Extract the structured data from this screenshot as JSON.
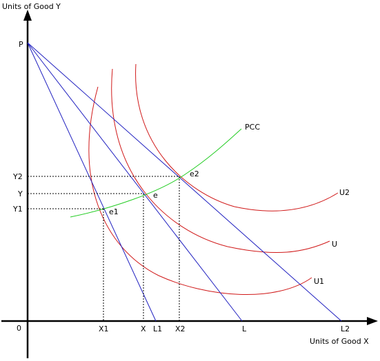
{
  "axes": {
    "y_title": "Units of Good Y",
    "x_title": "Units of Good X",
    "origin": "0",
    "axis_color": "#000000"
  },
  "points": {
    "P": "P",
    "e": "e",
    "e1": "e1",
    "e2": "e2"
  },
  "y_ticks": {
    "Y2": "Y2",
    "Y": "Y",
    "Y1": "Y1"
  },
  "x_ticks": {
    "X1": "X1",
    "X": "X",
    "X2": "X2",
    "L1": "L1",
    "L": "L",
    "L2": "L2"
  },
  "curves": {
    "U": "U",
    "U1": "U1",
    "U2": "U2",
    "PCC": "PCC"
  },
  "colors": {
    "budget_lines": "#2020c0",
    "indifference_curves": "#d01818",
    "pcc": "#22cc22",
    "guides": "#000000"
  }
}
